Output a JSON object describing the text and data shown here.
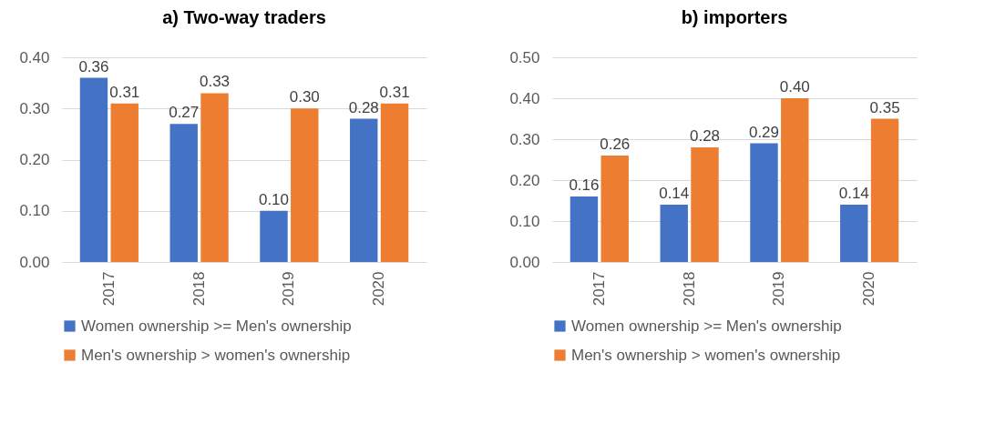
{
  "chart_data": [
    {
      "type": "bar",
      "title": "a) Two-way traders",
      "categories": [
        "2017",
        "2018",
        "2019",
        "2020"
      ],
      "series": [
        {
          "name": "Women ownership >= Men's ownership",
          "color": "#4472c4",
          "values": [
            0.36,
            0.27,
            0.1,
            0.28
          ],
          "value_labels": [
            "0.36",
            "0.27",
            "0.10",
            "0.28"
          ]
        },
        {
          "name": "Men's ownership > women's ownership",
          "color": "#ed7d31",
          "values": [
            0.31,
            0.33,
            0.3,
            0.31
          ],
          "value_labels": [
            "0.31",
            "0.33",
            "0.30",
            "0.31"
          ]
        }
      ],
      "ylim": [
        0,
        0.4
      ],
      "yticks": [
        {
          "value": 0,
          "label": "0.00"
        },
        {
          "value": 0.1,
          "label": "0.10"
        },
        {
          "value": 0.2,
          "label": "0.20"
        },
        {
          "value": 0.3,
          "label": "0.30"
        },
        {
          "value": 0.4,
          "label": "0.40"
        }
      ],
      "grid": "y",
      "legend": "bottom"
    },
    {
      "type": "bar",
      "title": "b) importers",
      "categories": [
        "2017",
        "2018",
        "2019",
        "2020"
      ],
      "series": [
        {
          "name": "Women ownership >= Men's ownership",
          "color": "#4472c4",
          "values": [
            0.16,
            0.14,
            0.29,
            0.14
          ],
          "value_labels": [
            "0.16",
            "0.14",
            "0.29",
            "0.14"
          ]
        },
        {
          "name": "Men's ownership > women's ownership",
          "color": "#ed7d31",
          "values": [
            0.26,
            0.28,
            0.4,
            0.35
          ],
          "value_labels": [
            "0.26",
            "0.28",
            "0.40",
            "0.35"
          ]
        }
      ],
      "ylim": [
        0,
        0.5
      ],
      "yticks": [
        {
          "value": 0,
          "label": "0.00"
        },
        {
          "value": 0.1,
          "label": "0.10"
        },
        {
          "value": 0.2,
          "label": "0.20"
        },
        {
          "value": 0.3,
          "label": "0.30"
        },
        {
          "value": 0.4,
          "label": "0.40"
        },
        {
          "value": 0.5,
          "label": "0.50"
        }
      ],
      "grid": "y",
      "legend": "bottom"
    }
  ]
}
